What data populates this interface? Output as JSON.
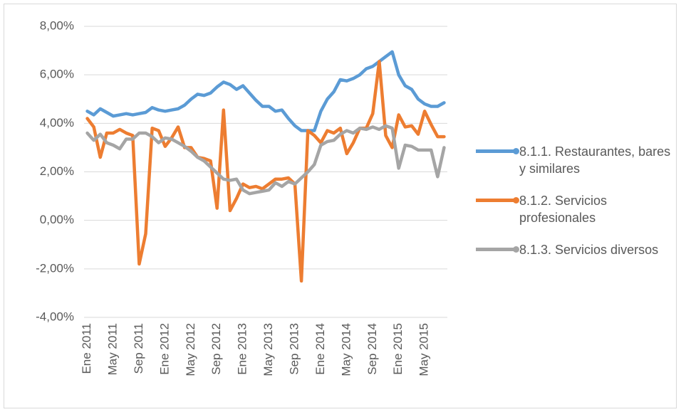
{
  "chart_data": {
    "type": "line",
    "categories": [
      "Ene 2011",
      null,
      null,
      null,
      "May 2011",
      null,
      null,
      null,
      "Sep 2011",
      null,
      null,
      null,
      "Ene 2012",
      null,
      null,
      null,
      "May 2012",
      null,
      null,
      null,
      "Sep 2012",
      null,
      null,
      null,
      "Ene 2013",
      null,
      null,
      null,
      "May 2013",
      null,
      null,
      null,
      "Sep 2013",
      null,
      null,
      null,
      "Ene 2014",
      null,
      null,
      null,
      "May 2014",
      null,
      null,
      null,
      "Sep 2014",
      null,
      null,
      null,
      "Ene 2015",
      null,
      null,
      null,
      "May 2015",
      null,
      null,
      null
    ],
    "series": [
      {
        "name": "8.1.1. Restaurantes, bares y similares",
        "color": "#5b9bd5",
        "values": [
          4.5,
          4.35,
          4.6,
          4.45,
          4.3,
          4.35,
          4.4,
          4.35,
          4.4,
          4.45,
          4.65,
          4.55,
          4.5,
          4.55,
          4.6,
          4.75,
          5.0,
          5.2,
          5.15,
          5.25,
          5.5,
          5.7,
          5.6,
          5.4,
          5.55,
          5.25,
          4.95,
          4.7,
          4.7,
          4.5,
          4.55,
          4.2,
          3.9,
          3.7,
          3.7,
          3.7,
          4.5,
          5.0,
          5.3,
          5.8,
          5.75,
          5.85,
          6.0,
          6.25,
          6.35,
          6.55,
          6.75,
          6.95,
          6.0,
          5.55,
          5.4,
          5.0,
          4.8,
          4.7,
          4.7,
          4.85
        ]
      },
      {
        "name": "8.1.2. Servicios profesionales",
        "color": "#ed7d31",
        "values": [
          4.2,
          3.85,
          2.6,
          3.6,
          3.6,
          3.75,
          3.6,
          3.5,
          -1.8,
          -0.55,
          3.8,
          3.7,
          3.05,
          3.4,
          3.85,
          3.0,
          3.0,
          2.6,
          2.55,
          2.45,
          0.5,
          4.55,
          0.4,
          0.9,
          1.5,
          1.35,
          1.4,
          1.3,
          1.5,
          1.7,
          1.7,
          1.75,
          1.5,
          -2.5,
          3.7,
          3.5,
          3.2,
          3.7,
          3.6,
          3.8,
          2.75,
          3.2,
          3.8,
          3.8,
          4.4,
          6.55,
          3.5,
          3.0,
          4.35,
          3.85,
          3.9,
          3.55,
          4.5,
          3.95,
          3.45,
          3.45
        ]
      },
      {
        "name": "8.1.3. Servicios diversos",
        "color": "#a5a5a5",
        "values": [
          3.6,
          3.3,
          3.55,
          3.2,
          3.1,
          2.95,
          3.35,
          3.35,
          3.6,
          3.6,
          3.45,
          3.2,
          3.4,
          3.35,
          3.2,
          3.05,
          2.85,
          2.6,
          2.45,
          2.2,
          1.95,
          1.7,
          1.65,
          1.7,
          1.25,
          1.1,
          1.15,
          1.2,
          1.25,
          1.55,
          1.4,
          1.6,
          1.5,
          1.75,
          2.0,
          2.3,
          3.1,
          3.25,
          3.3,
          3.55,
          3.7,
          3.6,
          3.8,
          3.75,
          3.85,
          3.75,
          3.9,
          3.8,
          2.15,
          3.1,
          3.05,
          2.9,
          2.9,
          2.9,
          1.8,
          3.0
        ]
      }
    ],
    "ylim": [
      -4,
      8
    ],
    "yticks": [
      {
        "value": -4,
        "label": "-4,00%"
      },
      {
        "value": -2,
        "label": "-2,00%"
      },
      {
        "value": 0,
        "label": "0,00%"
      },
      {
        "value": 2,
        "label": "2,00%"
      },
      {
        "value": 4,
        "label": "4,00%"
      },
      {
        "value": 6,
        "label": "6,00%"
      },
      {
        "value": 8,
        "label": "8,00%"
      }
    ],
    "grid": true,
    "legend": "right"
  }
}
